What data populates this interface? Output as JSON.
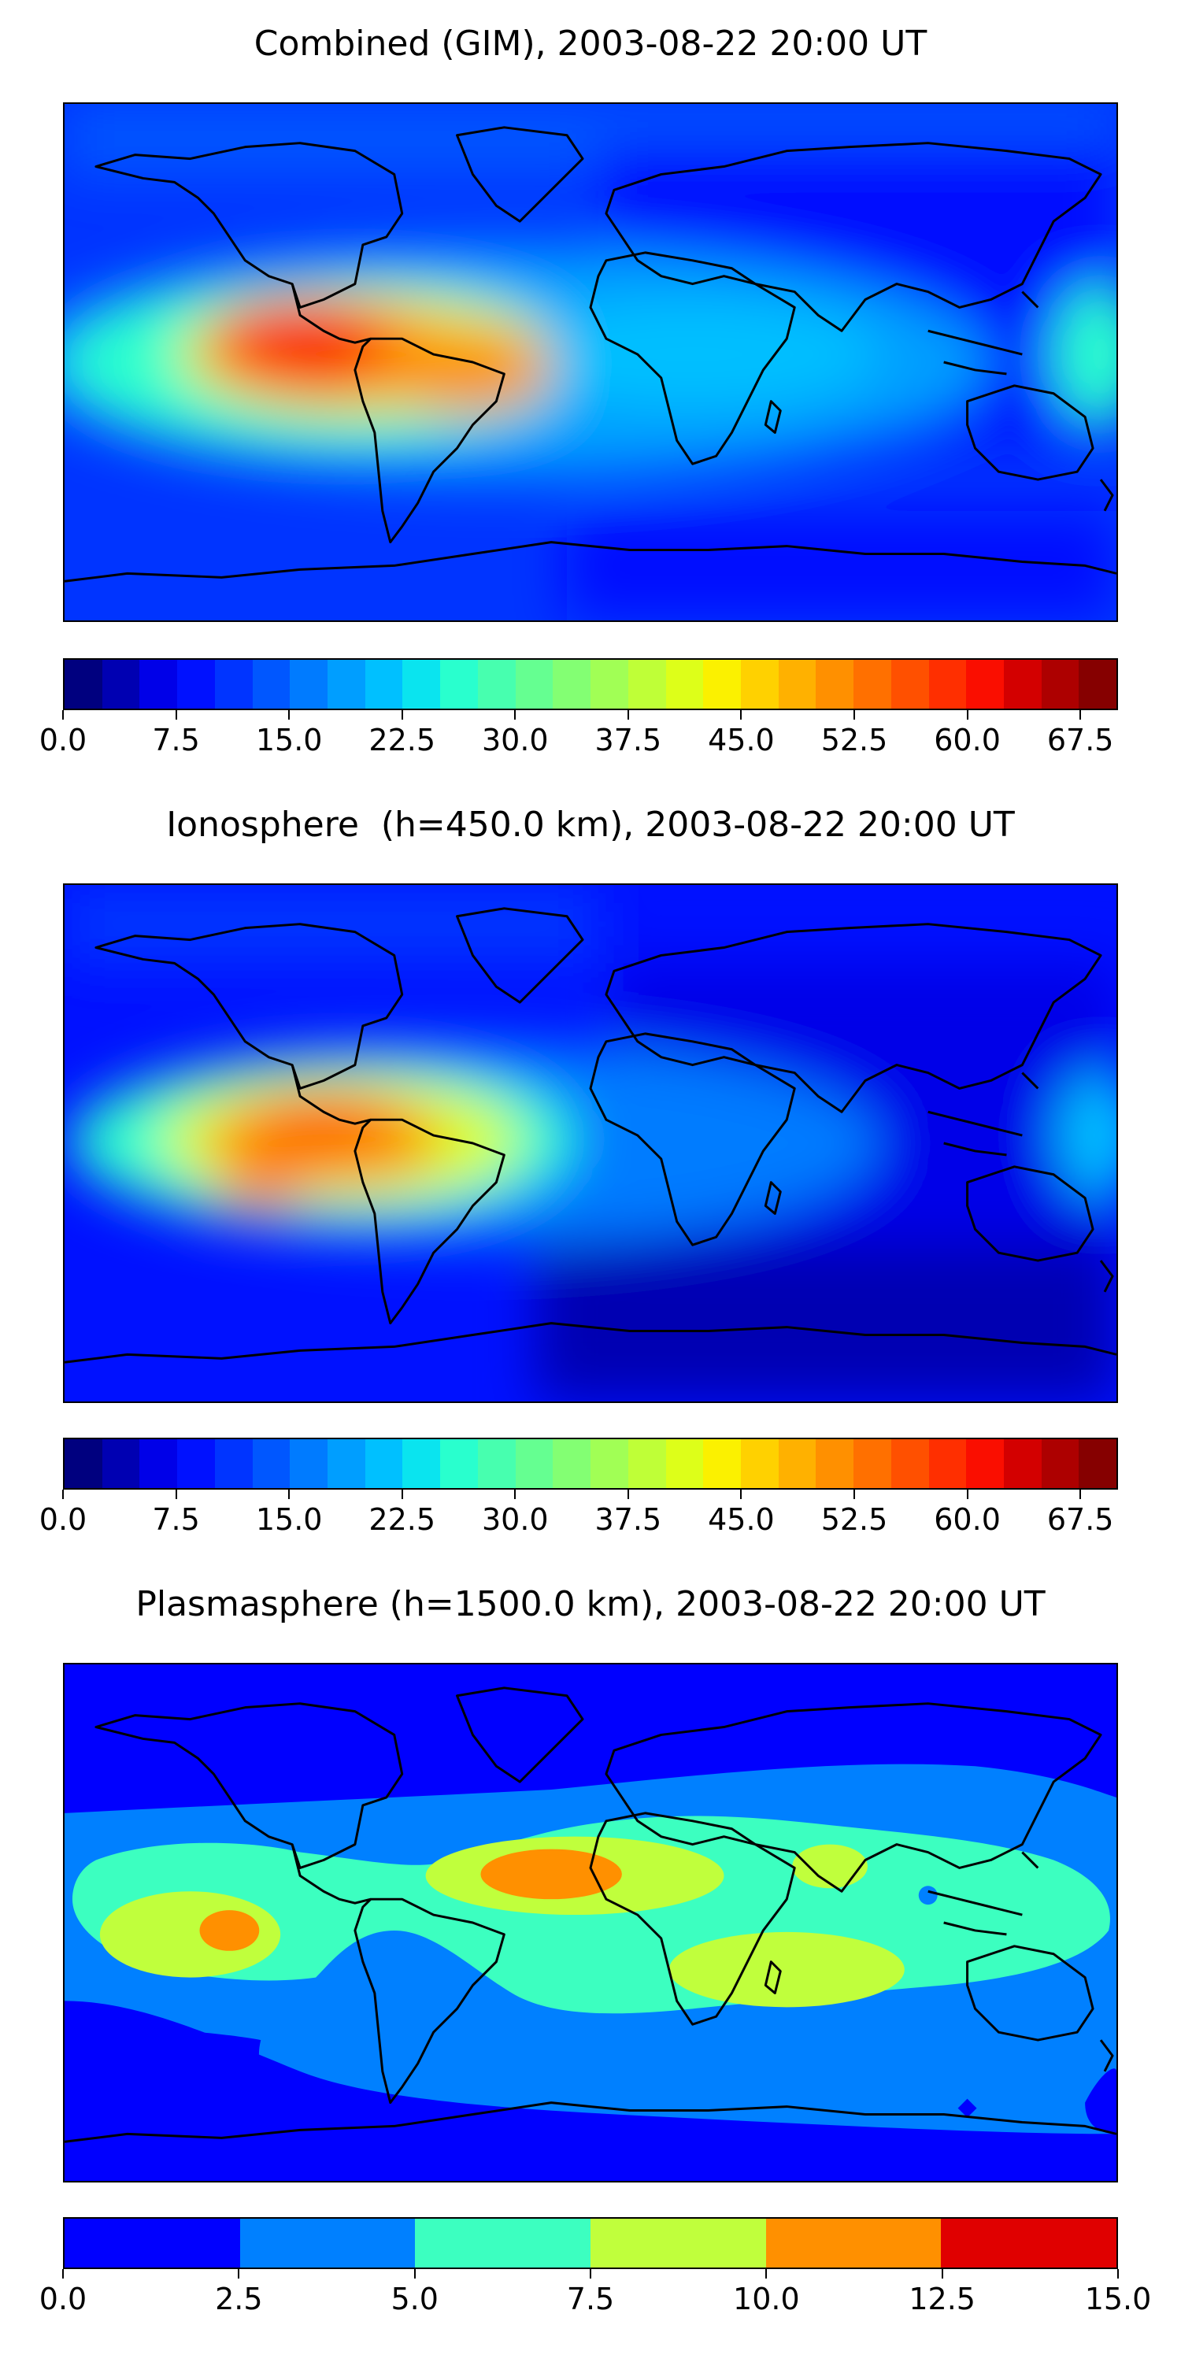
{
  "panels": [
    {
      "title": "Combined (GIM), 2003-08-22 20:00 UT",
      "colorbar": {
        "min": 0.0,
        "max": 70.0,
        "levels": 28,
        "tick_labels": [
          "0.0",
          "7.5",
          "15.0",
          "22.5",
          "30.0",
          "37.5",
          "45.0",
          "52.5",
          "60.0",
          "67.5"
        ],
        "tick_values": [
          0.0,
          7.5,
          15.0,
          22.5,
          30.0,
          37.5,
          45.0,
          52.5,
          60.0,
          67.5
        ]
      }
    },
    {
      "title": "Ionosphere  (h=450.0 km), 2003-08-22 20:00 UT",
      "colorbar": {
        "min": 0.0,
        "max": 70.0,
        "levels": 28,
        "tick_labels": [
          "0.0",
          "7.5",
          "15.0",
          "22.5",
          "30.0",
          "37.5",
          "45.0",
          "52.5",
          "60.0",
          "67.5"
        ],
        "tick_values": [
          0.0,
          7.5,
          15.0,
          22.5,
          30.0,
          37.5,
          45.0,
          52.5,
          60.0,
          67.5
        ]
      }
    },
    {
      "title": "Plasmasphere (h=1500.0 km), 2003-08-22 20:00 UT",
      "colorbar": {
        "min": 0.0,
        "max": 15.0,
        "levels": 6,
        "tick_labels": [
          "0.0",
          "2.5",
          "5.0",
          "7.5",
          "10.0",
          "12.5",
          "15.0"
        ],
        "tick_values": [
          0.0,
          2.5,
          5.0,
          7.5,
          10.0,
          12.5,
          15.0
        ]
      }
    }
  ],
  "chart_data": [
    {
      "type": "heatmap",
      "title": "Combined (GIM), 2003-08-22 20:00 UT",
      "colormap": "jet",
      "range": [
        0,
        70
      ],
      "peak_regions": [
        {
          "region": "north of South America / Caribbean",
          "value": 62
        },
        {
          "region": "eastern Pacific west of South America",
          "value": 62
        },
        {
          "region": "over Brazil",
          "value": 52
        },
        {
          "region": "tropical Atlantic",
          "value": 35
        },
        {
          "region": "western Pacific edge",
          "value": 25
        }
      ],
      "background_value": 10
    },
    {
      "type": "heatmap",
      "title": "Ionosphere  (h=450.0 km), 2003-08-22 20:00 UT",
      "colormap": "jet",
      "range": [
        0,
        70
      ],
      "peak_regions": [
        {
          "region": "north of South America / Caribbean",
          "value": 55
        },
        {
          "region": "eastern Pacific west of South America",
          "value": 52
        },
        {
          "region": "over Brazil",
          "value": 45
        },
        {
          "region": "tropical Atlantic",
          "value": 30
        },
        {
          "region": "western Pacific edge",
          "value": 22
        }
      ],
      "background_value": 7
    },
    {
      "type": "heatmap",
      "title": "Plasmasphere (h=1500.0 km), 2003-08-22 20:00 UT",
      "colormap": "jet",
      "range": [
        0,
        15
      ],
      "peak_regions": [
        {
          "region": "Sahara / North Africa",
          "value": 11
        },
        {
          "region": "central Pacific",
          "value": 11
        },
        {
          "region": "southern Africa / Indian Ocean",
          "value": 8.5
        },
        {
          "region": "India",
          "value": 8.5
        },
        {
          "region": "tropical band",
          "value": 6
        }
      ],
      "background_value": 2
    }
  ],
  "colors": {
    "jet_28": [
      "#00007f",
      "#0000b2",
      "#0000e8",
      "#0011ff",
      "#0034ff",
      "#0057ff",
      "#007bff",
      "#009eff",
      "#00c0ff",
      "#0ae4ef",
      "#29ffce",
      "#47ffaf",
      "#65ff91",
      "#83ff73",
      "#a1ff55",
      "#bfff37",
      "#ddff19",
      "#fbf100",
      "#ffd100",
      "#ffb100",
      "#ff9000",
      "#ff7000",
      "#ff5000",
      "#ff2f00",
      "#fa0e00",
      "#d30000",
      "#ad0000",
      "#860000"
    ],
    "jet_6": [
      "#0000ff",
      "#0080ff",
      "#3cffc0",
      "#c0ff3c",
      "#ff9000",
      "#e00000"
    ],
    "coastline": "#000000"
  }
}
